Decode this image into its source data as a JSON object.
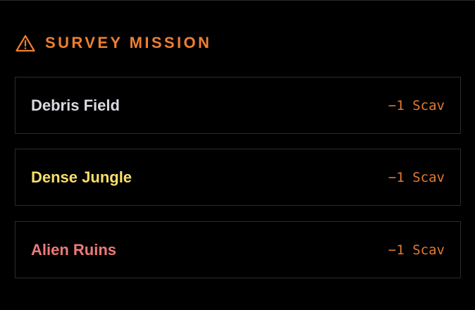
{
  "header": {
    "icon": "warning-triangle-icon",
    "title": "SURVEY MISSION",
    "color": "#ef7f33"
  },
  "options": [
    {
      "name": "Debris Field",
      "cost": "−1 Scav",
      "color": "#d9dae0"
    },
    {
      "name": "Dense Jungle",
      "cost": "−1 Scav",
      "color": "#f7df6a"
    },
    {
      "name": "Alien Ruins",
      "cost": "−1 Scav",
      "color": "#ec7a78"
    }
  ]
}
